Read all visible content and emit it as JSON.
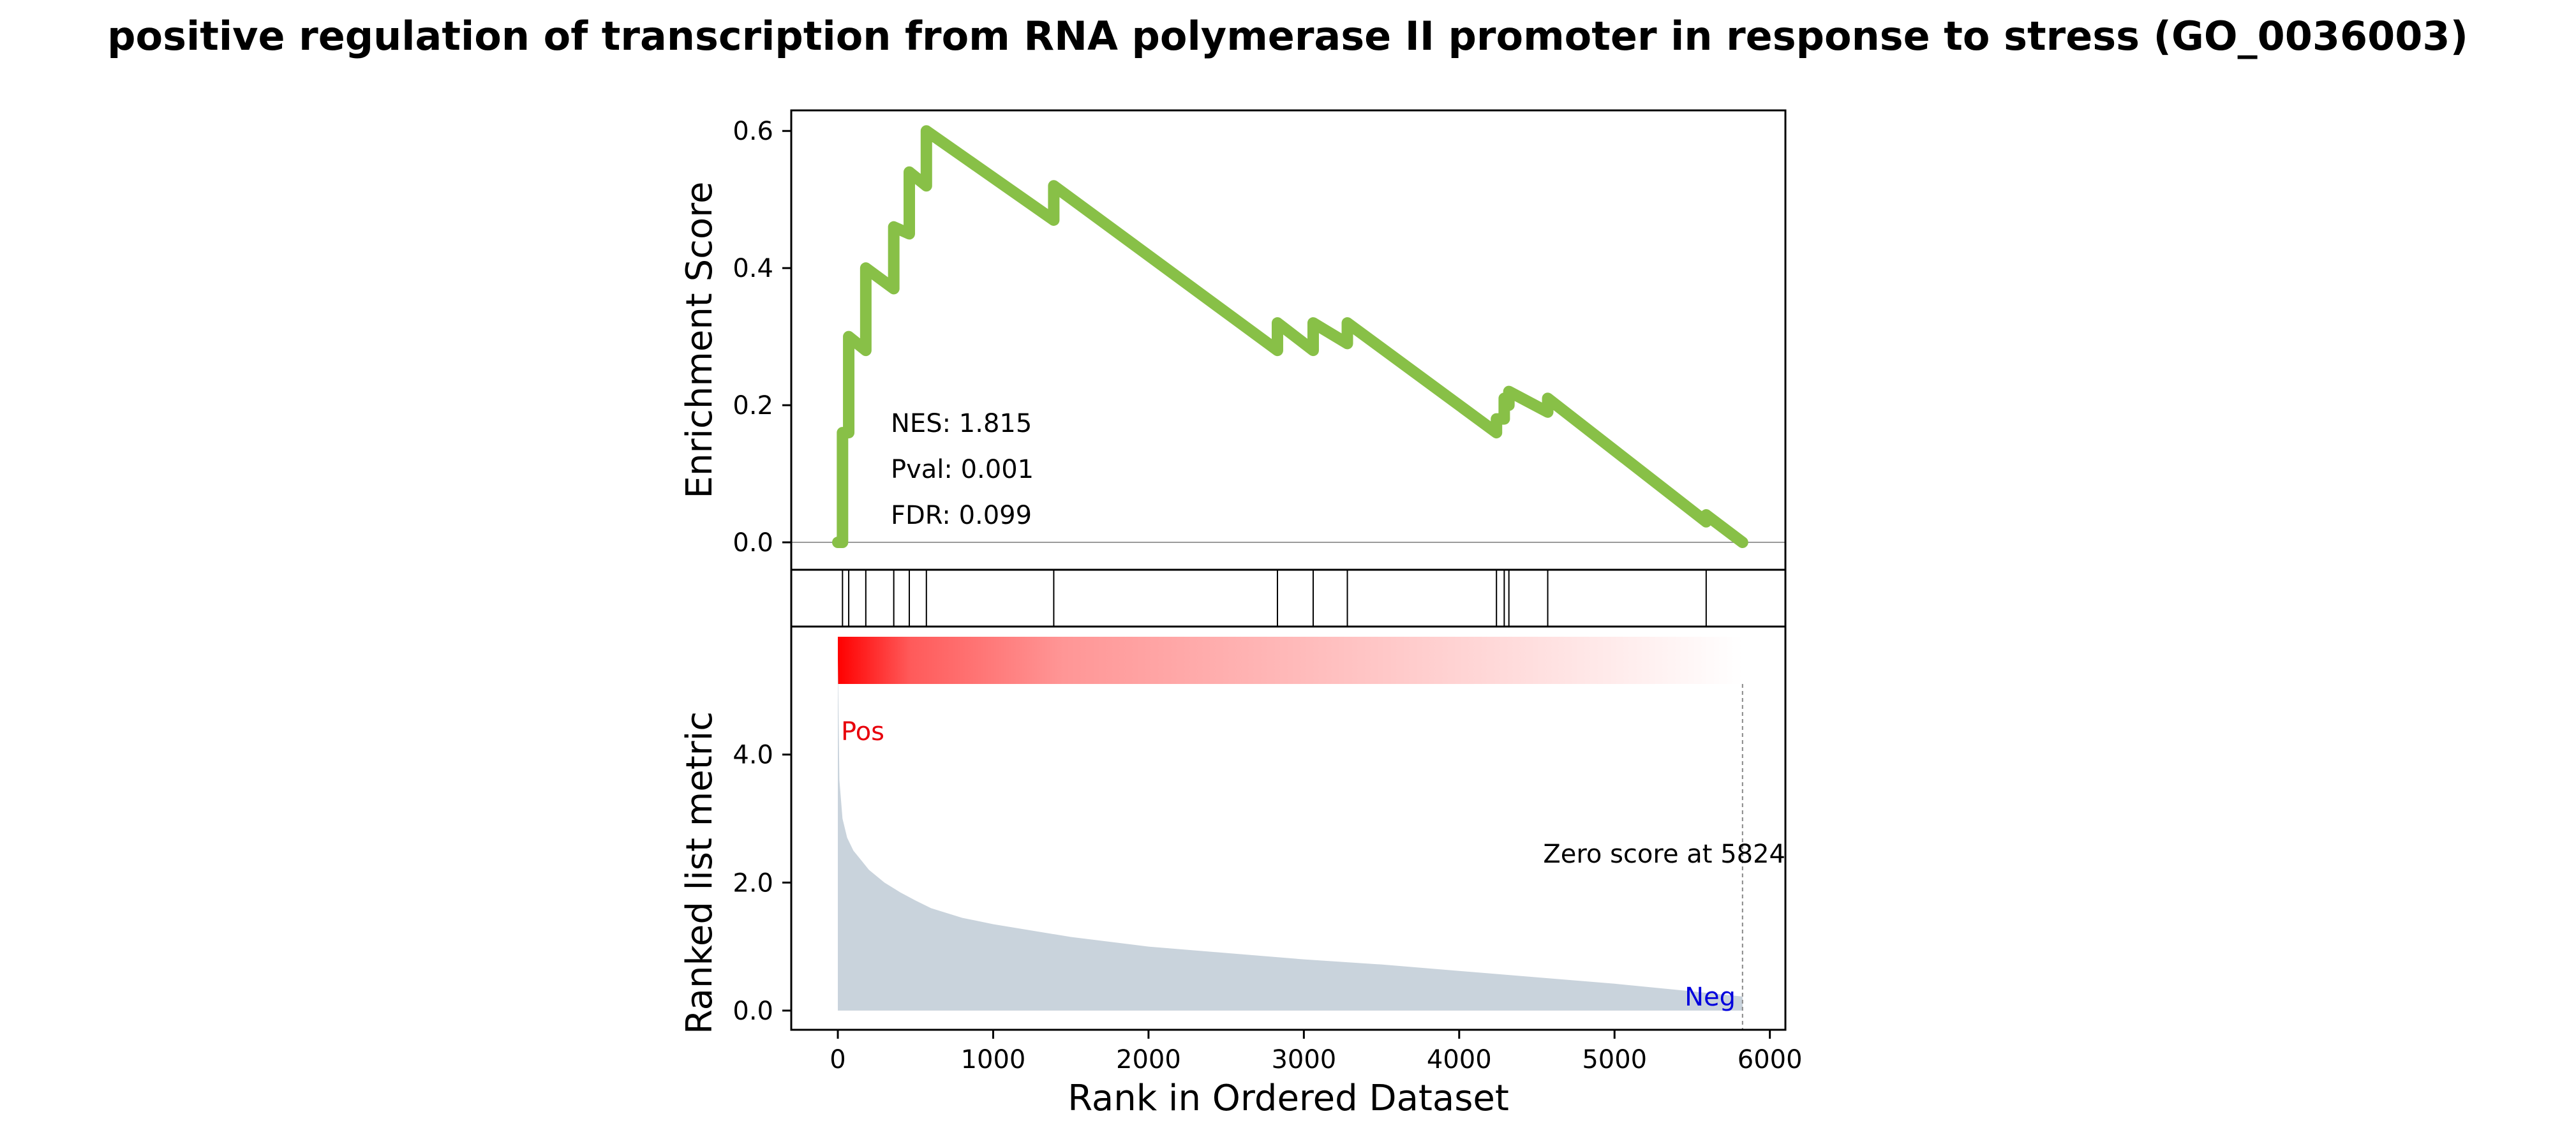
{
  "chart_data": {
    "type": "line",
    "title": "positive regulation of transcription from RNA polymerase II promoter in response to stress (GO_0036003)",
    "xlabel": "Rank in Ordered Dataset",
    "xlim": [
      -300,
      6100
    ],
    "x_ticks": [
      0,
      1000,
      2000,
      3000,
      4000,
      5000,
      6000
    ],
    "enrichment_panel": {
      "ylabel": "Enrichment Score",
      "ylim": [
        -0.04,
        0.63
      ],
      "y_ticks": [
        "0.0",
        "0.2",
        "0.4",
        "0.6"
      ],
      "y_tick_values": [
        0.0,
        0.2,
        0.4,
        0.6
      ],
      "line_color": "#88c047",
      "baseline": 0,
      "x": [
        0,
        30,
        30,
        70,
        70,
        180,
        180,
        360,
        360,
        460,
        460,
        570,
        570,
        1390,
        1390,
        2830,
        2830,
        3060,
        3060,
        3280,
        3280,
        4240,
        4240,
        4290,
        4290,
        4320,
        4320,
        4570,
        4570,
        5590,
        5590,
        5824
      ],
      "y": [
        0.0,
        0.0,
        0.16,
        0.16,
        0.3,
        0.28,
        0.4,
        0.37,
        0.46,
        0.45,
        0.54,
        0.52,
        0.6,
        0.47,
        0.52,
        0.28,
        0.32,
        0.28,
        0.32,
        0.29,
        0.32,
        0.16,
        0.18,
        0.18,
        0.21,
        0.2,
        0.22,
        0.19,
        0.21,
        0.03,
        0.04,
        0.0
      ],
      "annotations": [
        "NES: 1.815",
        "Pval: 0.001",
        "FDR: 0.099"
      ]
    },
    "hits_panel": {
      "hit_ranks": [
        30,
        70,
        180,
        360,
        460,
        570,
        1390,
        2830,
        3060,
        3280,
        4240,
        4290,
        4320,
        4570,
        5590
      ]
    },
    "heatmap_bar": {
      "from_color": "#ff0000",
      "to_color": "#ffffff",
      "range": [
        0,
        5824
      ]
    },
    "ranked_panel": {
      "ylabel": "Ranked list metric",
      "ylim": [
        -0.3,
        6.0
      ],
      "y_ticks": [
        "0.0",
        "2.0",
        "4.0"
      ],
      "y_tick_values": [
        0.0,
        2.0,
        4.0
      ],
      "fill_color": "#c9d3dc",
      "x": [
        0,
        10,
        30,
        60,
        100,
        150,
        200,
        300,
        400,
        500,
        600,
        800,
        1000,
        1500,
        2000,
        2500,
        3000,
        3500,
        4000,
        4500,
        5000,
        5500,
        5824
      ],
      "y": [
        5.5,
        3.6,
        3.0,
        2.7,
        2.5,
        2.35,
        2.2,
        2.0,
        1.85,
        1.72,
        1.6,
        1.45,
        1.35,
        1.15,
        1.0,
        0.9,
        0.8,
        0.72,
        0.62,
        0.52,
        0.42,
        0.3,
        0.22
      ],
      "pos_label": "Pos",
      "pos_color": "#e8000b",
      "neg_label": "Neg",
      "neg_color": "#0000dd",
      "zero_score_label": "Zero score at 5824",
      "zero_score_rank": 5824
    }
  }
}
